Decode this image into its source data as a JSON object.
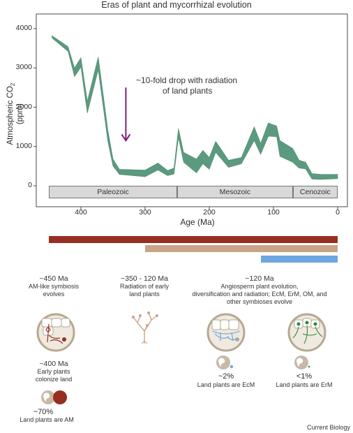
{
  "title": "Eras of plant and mycorrhizal evolution",
  "chart_data": {
    "type": "area",
    "ylabel": "Atmospheric CO2 (ppm)",
    "xlabel": "Age (Ma)",
    "x_reversed": true,
    "xlim": [
      450,
      0
    ],
    "ylim": [
      0,
      4000
    ],
    "y_ticks": [
      0,
      1000,
      2000,
      3000,
      4000
    ],
    "x_ticks": [
      400,
      300,
      200,
      100,
      0
    ],
    "series": [
      {
        "upper": [
          {
            "x": 445,
            "y": 3820
          },
          {
            "x": 420,
            "y": 3540
          },
          {
            "x": 410,
            "y": 3000
          },
          {
            "x": 400,
            "y": 3260
          },
          {
            "x": 390,
            "y": 2150
          },
          {
            "x": 373,
            "y": 3280
          },
          {
            "x": 358,
            "y": 1420
          },
          {
            "x": 350,
            "y": 680
          },
          {
            "x": 340,
            "y": 420
          },
          {
            "x": 300,
            "y": 400
          },
          {
            "x": 280,
            "y": 580
          },
          {
            "x": 265,
            "y": 390
          },
          {
            "x": 255,
            "y": 450
          },
          {
            "x": 248,
            "y": 1460
          },
          {
            "x": 240,
            "y": 850
          },
          {
            "x": 220,
            "y": 680
          },
          {
            "x": 210,
            "y": 900
          },
          {
            "x": 200,
            "y": 720
          },
          {
            "x": 190,
            "y": 1130
          },
          {
            "x": 170,
            "y": 650
          },
          {
            "x": 150,
            "y": 720
          },
          {
            "x": 130,
            "y": 1500
          },
          {
            "x": 120,
            "y": 1080
          },
          {
            "x": 108,
            "y": 1600
          },
          {
            "x": 95,
            "y": 1520
          },
          {
            "x": 90,
            "y": 1150
          },
          {
            "x": 70,
            "y": 950
          },
          {
            "x": 60,
            "y": 650
          },
          {
            "x": 50,
            "y": 600
          },
          {
            "x": 40,
            "y": 310
          },
          {
            "x": 25,
            "y": 290
          },
          {
            "x": 0,
            "y": 290
          }
        ],
        "lower": [
          {
            "x": 445,
            "y": 3760
          },
          {
            "x": 420,
            "y": 3420
          },
          {
            "x": 410,
            "y": 2780
          },
          {
            "x": 400,
            "y": 3020
          },
          {
            "x": 390,
            "y": 1850
          },
          {
            "x": 373,
            "y": 2950
          },
          {
            "x": 358,
            "y": 1130
          },
          {
            "x": 350,
            "y": 500
          },
          {
            "x": 340,
            "y": 290
          },
          {
            "x": 300,
            "y": 230
          },
          {
            "x": 280,
            "y": 400
          },
          {
            "x": 265,
            "y": 260
          },
          {
            "x": 255,
            "y": 300
          },
          {
            "x": 248,
            "y": 1230
          },
          {
            "x": 240,
            "y": 600
          },
          {
            "x": 220,
            "y": 330
          },
          {
            "x": 210,
            "y": 560
          },
          {
            "x": 200,
            "y": 420
          },
          {
            "x": 190,
            "y": 850
          },
          {
            "x": 170,
            "y": 470
          },
          {
            "x": 150,
            "y": 560
          },
          {
            "x": 130,
            "y": 1150
          },
          {
            "x": 120,
            "y": 800
          },
          {
            "x": 108,
            "y": 1260
          },
          {
            "x": 95,
            "y": 1250
          },
          {
            "x": 90,
            "y": 750
          },
          {
            "x": 70,
            "y": 600
          },
          {
            "x": 60,
            "y": 450
          },
          {
            "x": 50,
            "y": 430
          },
          {
            "x": 40,
            "y": 170
          },
          {
            "x": 25,
            "y": 160
          },
          {
            "x": 0,
            "y": 180
          }
        ],
        "color": "#5b9a7f"
      }
    ],
    "annotation": {
      "text_line1": "~10-fold drop with radiation",
      "text_line2": "of land plants",
      "arrow_x": 330,
      "arrow_from_y": 2500,
      "arrow_to_y": 1150,
      "arrow_color": "#7b1f7a"
    },
    "eras": [
      {
        "label": "Paleozoic",
        "start": 450,
        "end": 250
      },
      {
        "label": "Mesozoic",
        "start": 250,
        "end": 70
      },
      {
        "label": "Cenozoic",
        "start": 70,
        "end": 0
      }
    ]
  },
  "timeline_bars": [
    {
      "start": 450,
      "end": 0,
      "color": "#962e22"
    },
    {
      "start": 300,
      "end": 0,
      "color": "#c9a488"
    },
    {
      "start": 120,
      "end": 0,
      "color": "#6ea6e0"
    }
  ],
  "captions": {
    "c450_time": "~450 Ma",
    "c450_line1": "AM-like symbiosis",
    "c450_line2": "evolves",
    "c350_time": "~350 - 120 Ma",
    "c350_line1": "Radiation of early",
    "c350_line2": "land plants",
    "c120_time": "~120 Ma",
    "c120_line1": "Angiosperm plant evolution,",
    "c120_line2": "diversification and radiation; EcM, ErM, OM, and",
    "c120_line3": "other symbioses evolve",
    "c400_time": "~400 Ma",
    "c400_line1": "Early plants",
    "c400_line2": "colonize land",
    "am_pct": "~70%",
    "am_label": "Land plants are AM",
    "ecm_pct": "~2%",
    "ecm_label": "Land plants are EcM",
    "erm_pct": "<1%",
    "erm_label": "Land plants are ErM"
  },
  "icons": {
    "am_root": "am-root-cell-icon",
    "early_plant": "early-land-plant-icon",
    "ecm_root": "ecm-root-cell-icon",
    "erm_root": "erm-root-cell-icon",
    "globe": "globe-icon"
  },
  "colors": {
    "am": "#962e22",
    "ecm": "#6ea6e0",
    "erm": "#2e8b3e",
    "tan": "#c9a488",
    "circle_fill": "#efe9df",
    "circle_ring": "#b7a891"
  },
  "credit": "Current Biology"
}
